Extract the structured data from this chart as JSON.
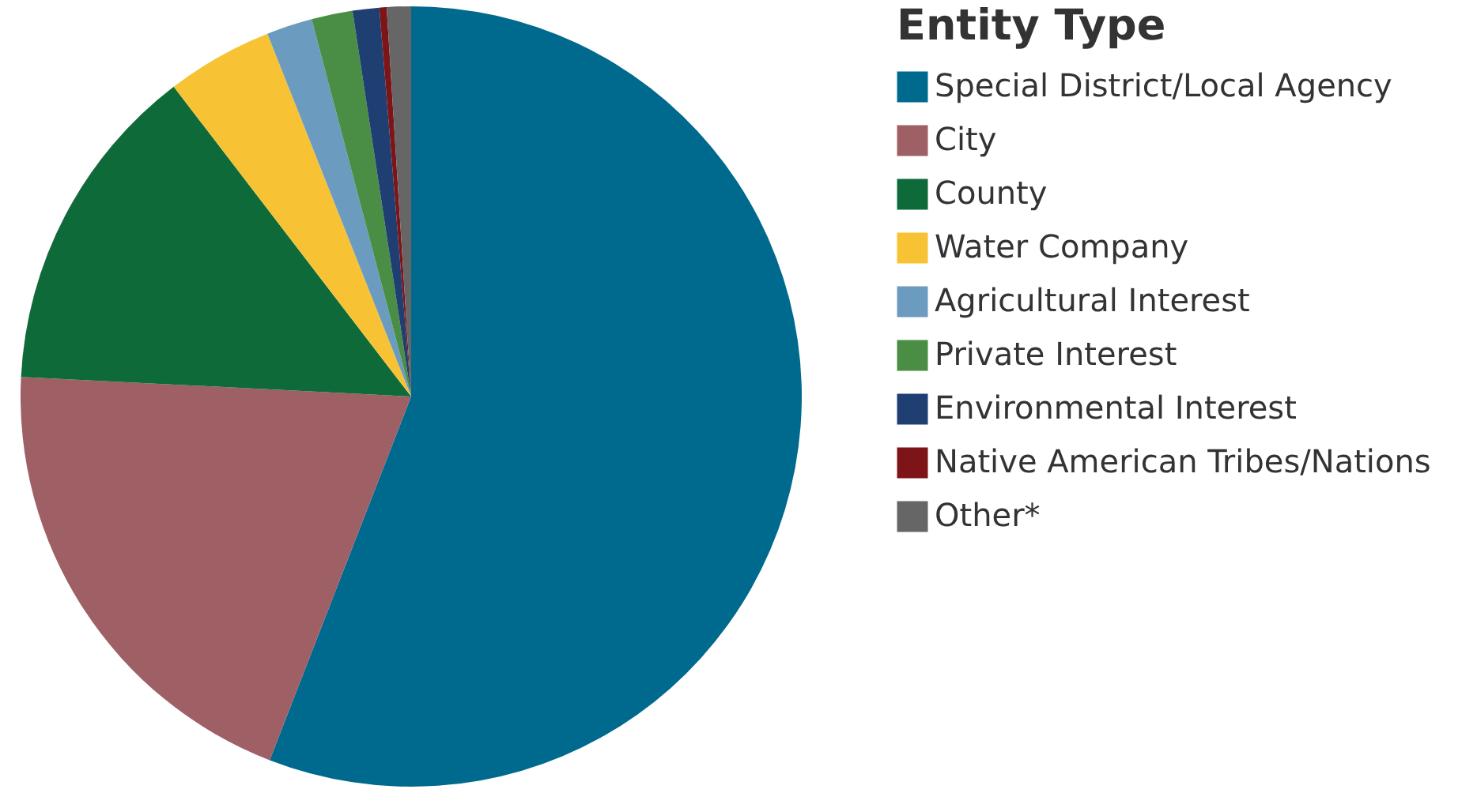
{
  "chart_data": {
    "type": "pie",
    "legend_title": "Entity Type",
    "legend": "right",
    "categories": [
      "Special District/Local Agency",
      "City",
      "County",
      "Water Company",
      "Agricultural Interest",
      "Private Interest",
      "Environmental Interest",
      "Native American Tribes/Nations",
      "Other*"
    ],
    "values": [
      55.9,
      19.9,
      13.8,
      4.4,
      1.9,
      1.7,
      1.1,
      0.3,
      1.0
    ],
    "colors": [
      "#006a8e",
      "#9e5f65",
      "#0f6a3a",
      "#f7c335",
      "#6b9cbf",
      "#4a8e45",
      "#1f3f73",
      "#7d1518",
      "#666666"
    ]
  }
}
